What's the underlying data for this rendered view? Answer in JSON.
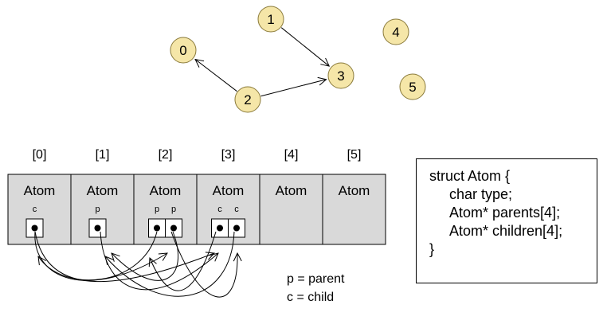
{
  "graph": {
    "nodes": [
      {
        "id": "0"
      },
      {
        "id": "1"
      },
      {
        "id": "2"
      },
      {
        "id": "3"
      },
      {
        "id": "4"
      },
      {
        "id": "5"
      }
    ],
    "edges": [
      {
        "from": "1",
        "to": "3"
      },
      {
        "from": "2",
        "to": "3"
      },
      {
        "from": "2",
        "to": "0"
      }
    ],
    "node_fill": "#f5e6a8",
    "node_stroke": "#8a7a3a"
  },
  "array": {
    "indices": [
      "[0]",
      "[1]",
      "[2]",
      "[3]",
      "[4]",
      "[5]"
    ],
    "cells": [
      {
        "label": "Atom",
        "slots": [
          "c"
        ]
      },
      {
        "label": "Atom",
        "slots": [
          "p"
        ]
      },
      {
        "label": "Atom",
        "slots": [
          "p",
          "p"
        ]
      },
      {
        "label": "Atom",
        "slots": [
          "c",
          "c"
        ]
      },
      {
        "label": "Atom",
        "slots": []
      },
      {
        "label": "Atom",
        "slots": []
      }
    ],
    "cell_fill": "#d9d9d9"
  },
  "legend": {
    "parent": "p = parent",
    "child": "c = child"
  },
  "code": {
    "lines": [
      "struct Atom {",
      "char type;",
      "Atom* parents[4];",
      "Atom* children[4];",
      "}"
    ]
  }
}
